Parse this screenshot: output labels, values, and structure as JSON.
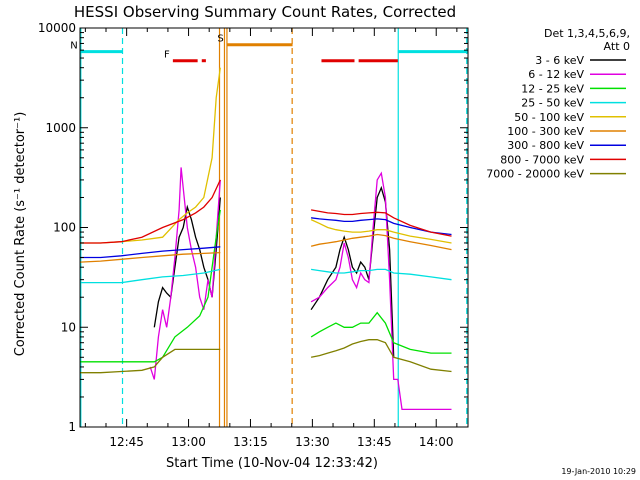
{
  "chart_data": {
    "type": "line",
    "title": "HESSI Observing Summary Count Rates, Corrected",
    "xlabel": "Start Time (10-Nov-04 12:33:42)",
    "ylabel": "Corrected Count Rate (s⁻¹ detector⁻¹)",
    "x_unit": "minutes after 12:33:42",
    "xlim": [
      0,
      94
    ],
    "yscale": "log",
    "ylim": [
      1,
      10000
    ],
    "x_ticks": [
      {
        "label": "12:45",
        "x": 11.3
      },
      {
        "label": "13:00",
        "x": 26.3
      },
      {
        "label": "13:15",
        "x": 41.3
      },
      {
        "label": "13:30",
        "x": 56.3
      },
      {
        "label": "13:45",
        "x": 71.3
      },
      {
        "label": "14:00",
        "x": 86.3
      }
    ],
    "y_ticks": [
      {
        "label": "1",
        "y": 1
      },
      {
        "label": "10",
        "y": 10
      },
      {
        "label": "100",
        "y": 100
      },
      {
        "label": "1000",
        "y": 1000
      },
      {
        "label": "10000",
        "y": 10000
      }
    ],
    "legend_title": "Det 1,3,4,5,6,9,",
    "legend_subtitle": "Att 0",
    "legend_position": "right",
    "series": [
      {
        "name": "3 - 6 keV",
        "color": "#000000",
        "segments": [
          [
            [
              18,
              10
            ],
            [
              19,
              18
            ],
            [
              20,
              25
            ],
            [
              21,
              22
            ],
            [
              22,
              20
            ],
            [
              23,
              40
            ],
            [
              24,
              80
            ],
            [
              25,
              100
            ],
            [
              26,
              160
            ],
            [
              27,
              120
            ],
            [
              28,
              80
            ],
            [
              29,
              60
            ],
            [
              30,
              40
            ],
            [
              31,
              30
            ],
            [
              32,
              20
            ],
            [
              33,
              60
            ],
            [
              34,
              200
            ]
          ],
          [
            [
              56,
              15
            ],
            [
              58,
              20
            ],
            [
              60,
              30
            ],
            [
              62,
              40
            ],
            [
              63,
              60
            ],
            [
              64,
              80
            ],
            [
              65,
              60
            ],
            [
              66,
              40
            ],
            [
              67,
              35
            ],
            [
              68,
              45
            ],
            [
              69,
              40
            ],
            [
              70,
              30
            ],
            [
              71,
              80
            ],
            [
              72,
              200
            ],
            [
              73,
              250
            ],
            [
              74,
              180
            ],
            [
              75,
              60
            ],
            [
              76,
              5
            ]
          ]
        ]
      },
      {
        "name": "6 - 12 keV",
        "color": "#e000e0",
        "segments": [
          [
            [
              17,
              4
            ],
            [
              18,
              3
            ],
            [
              19,
              8
            ],
            [
              20,
              15
            ],
            [
              21,
              10
            ],
            [
              22,
              20
            ],
            [
              23,
              50
            ],
            [
              24,
              150
            ],
            [
              24.5,
              400
            ],
            [
              25,
              250
            ],
            [
              26,
              100
            ],
            [
              27,
              60
            ],
            [
              28,
              40
            ],
            [
              29,
              20
            ],
            [
              30,
              15
            ],
            [
              31,
              30
            ],
            [
              32,
              20
            ],
            [
              33,
              80
            ],
            [
              34,
              300
            ]
          ],
          [
            [
              56,
              18
            ],
            [
              58,
              20
            ],
            [
              60,
              25
            ],
            [
              62,
              30
            ],
            [
              63,
              40
            ],
            [
              64,
              70
            ],
            [
              65,
              50
            ],
            [
              66,
              30
            ],
            [
              67,
              25
            ],
            [
              68,
              35
            ],
            [
              69,
              30
            ],
            [
              70,
              28
            ],
            [
              71,
              100
            ],
            [
              72,
              300
            ],
            [
              73,
              350
            ],
            [
              74,
              200
            ],
            [
              75,
              30
            ],
            [
              76,
              3
            ],
            [
              77,
              3
            ],
            [
              78,
              1.5
            ],
            [
              82,
              1.5
            ],
            [
              90,
              1.5
            ]
          ]
        ]
      },
      {
        "name": "12 - 25 keV",
        "color": "#00e000",
        "segments": [
          [
            [
              0,
              4.5
            ],
            [
              5,
              4.5
            ],
            [
              10,
              4.5
            ],
            [
              15,
              4.5
            ],
            [
              18,
              4.5
            ],
            [
              20,
              5
            ],
            [
              23,
              8
            ],
            [
              26,
              10
            ],
            [
              29,
              13
            ],
            [
              31,
              20
            ],
            [
              33,
              80
            ],
            [
              34,
              150
            ]
          ],
          [
            [
              56,
              8
            ],
            [
              58,
              9
            ],
            [
              60,
              10
            ],
            [
              62,
              11
            ],
            [
              64,
              10
            ],
            [
              66,
              10
            ],
            [
              68,
              11
            ],
            [
              70,
              11
            ],
            [
              72,
              14
            ],
            [
              74,
              11
            ],
            [
              76,
              7
            ],
            [
              80,
              6
            ],
            [
              85,
              5.5
            ],
            [
              90,
              5.5
            ]
          ]
        ]
      },
      {
        "name": "25 - 50 keV",
        "color": "#00e0e0",
        "segments": [
          [
            [
              0,
              28
            ],
            [
              5,
              28
            ],
            [
              10,
              28
            ],
            [
              15,
              30
            ],
            [
              20,
              32
            ],
            [
              25,
              33
            ],
            [
              30,
              35
            ],
            [
              34,
              38
            ]
          ],
          [
            [
              56,
              38
            ],
            [
              58,
              37
            ],
            [
              60,
              36
            ],
            [
              62,
              35
            ],
            [
              64,
              35
            ],
            [
              66,
              36
            ],
            [
              68,
              37
            ],
            [
              70,
              37
            ],
            [
              72,
              38
            ],
            [
              74,
              38
            ],
            [
              76,
              35
            ],
            [
              80,
              34
            ],
            [
              85,
              32
            ],
            [
              90,
              30
            ]
          ]
        ]
      },
      {
        "name": "50 - 100 keV",
        "color": "#e0c000",
        "segments": [
          [
            [
              0,
              70
            ],
            [
              5,
              70
            ],
            [
              10,
              72
            ],
            [
              15,
              75
            ],
            [
              20,
              80
            ],
            [
              24,
              120
            ],
            [
              26,
              140
            ],
            [
              28,
              160
            ],
            [
              30,
              200
            ],
            [
              32,
              500
            ],
            [
              33,
              2000
            ],
            [
              34,
              4000
            ]
          ],
          [
            [
              56,
              120
            ],
            [
              58,
              110
            ],
            [
              60,
              100
            ],
            [
              62,
              95
            ],
            [
              64,
              92
            ],
            [
              66,
              90
            ],
            [
              68,
              90
            ],
            [
              70,
              92
            ],
            [
              72,
              95
            ],
            [
              74,
              95
            ],
            [
              76,
              90
            ],
            [
              80,
              82
            ],
            [
              85,
              76
            ],
            [
              90,
              70
            ]
          ]
        ]
      },
      {
        "name": "100 - 300 keV",
        "color": "#e08000",
        "segments": [
          [
            [
              0,
              45
            ],
            [
              5,
              46
            ],
            [
              10,
              48
            ],
            [
              15,
              50
            ],
            [
              20,
              52
            ],
            [
              25,
              54
            ],
            [
              30,
              55
            ],
            [
              34,
              56
            ]
          ],
          [
            [
              56,
              65
            ],
            [
              58,
              68
            ],
            [
              60,
              70
            ],
            [
              62,
              72
            ],
            [
              64,
              75
            ],
            [
              66,
              78
            ],
            [
              68,
              80
            ],
            [
              70,
              82
            ],
            [
              72,
              85
            ],
            [
              74,
              83
            ],
            [
              76,
              78
            ],
            [
              80,
              72
            ],
            [
              85,
              66
            ],
            [
              90,
              60
            ]
          ]
        ]
      },
      {
        "name": "300 - 800 keV",
        "color": "#0000e0",
        "segments": [
          [
            [
              0,
              50
            ],
            [
              5,
              50
            ],
            [
              10,
              52
            ],
            [
              15,
              55
            ],
            [
              20,
              58
            ],
            [
              25,
              60
            ],
            [
              30,
              62
            ],
            [
              34,
              64
            ]
          ],
          [
            [
              56,
              125
            ],
            [
              58,
              122
            ],
            [
              60,
              120
            ],
            [
              62,
              118
            ],
            [
              64,
              115
            ],
            [
              66,
              115
            ],
            [
              68,
              118
            ],
            [
              70,
              120
            ],
            [
              72,
              122
            ],
            [
              74,
              120
            ],
            [
              76,
              110
            ],
            [
              80,
              100
            ],
            [
              85,
              90
            ],
            [
              90,
              85
            ]
          ]
        ]
      },
      {
        "name": "800 - 7000 keV",
        "color": "#e00000",
        "segments": [
          [
            [
              0,
              70
            ],
            [
              5,
              70
            ],
            [
              10,
              72
            ],
            [
              15,
              80
            ],
            [
              20,
              100
            ],
            [
              25,
              120
            ],
            [
              28,
              140
            ],
            [
              30,
              160
            ],
            [
              32,
              200
            ],
            [
              34,
              300
            ]
          ],
          [
            [
              56,
              150
            ],
            [
              58,
              145
            ],
            [
              60,
              140
            ],
            [
              62,
              138
            ],
            [
              64,
              135
            ],
            [
              66,
              135
            ],
            [
              68,
              138
            ],
            [
              70,
              140
            ],
            [
              72,
              142
            ],
            [
              74,
              140
            ],
            [
              76,
              125
            ],
            [
              80,
              105
            ],
            [
              85,
              90
            ],
            [
              90,
              82
            ]
          ]
        ]
      },
      {
        "name": "7000 - 20000 keV",
        "color": "#808000",
        "segments": [
          [
            [
              0,
              3.5
            ],
            [
              5,
              3.5
            ],
            [
              10,
              3.6
            ],
            [
              15,
              3.7
            ],
            [
              18,
              4
            ],
            [
              20,
              5
            ],
            [
              23,
              6
            ],
            [
              26,
              6
            ],
            [
              30,
              6
            ],
            [
              34,
              6
            ]
          ],
          [
            [
              56,
              5
            ],
            [
              58,
              5.2
            ],
            [
              60,
              5.5
            ],
            [
              62,
              5.8
            ],
            [
              64,
              6.2
            ],
            [
              66,
              6.8
            ],
            [
              68,
              7.2
            ],
            [
              70,
              7.5
            ],
            [
              72,
              7.5
            ],
            [
              74,
              7
            ],
            [
              76,
              5
            ],
            [
              80,
              4.5
            ],
            [
              85,
              3.8
            ],
            [
              90,
              3.6
            ]
          ]
        ]
      }
    ],
    "state_bars": [
      {
        "label": "N",
        "color": "#00e0e0",
        "y": 5800,
        "segments": [
          [
            0,
            10.3
          ],
          [
            77,
            94
          ]
        ]
      },
      {
        "label": "F",
        "color": "#e00000",
        "y": 4700,
        "segments": [
          [
            22.5,
            28.5
          ],
          [
            29.5,
            30.5
          ],
          [
            58.5,
            66.5
          ],
          [
            67.5,
            77
          ]
        ]
      },
      {
        "label": "S",
        "color": "#e08000",
        "y": 6800,
        "segments": [
          [
            35.5,
            51.5
          ]
        ]
      }
    ],
    "vlines": [
      {
        "color": "#00e0e0",
        "dashed": false,
        "x": 0.2
      },
      {
        "color": "#00e0e0",
        "dashed": true,
        "x": 10.3
      },
      {
        "color": "#e08000",
        "dashed": false,
        "x": 33.8
      },
      {
        "color": "#e08000",
        "dashed": false,
        "x": 35
      },
      {
        "color": "#e08000",
        "dashed": false,
        "x": 35.6
      },
      {
        "color": "#e08000",
        "dashed": true,
        "x": 51.4
      },
      {
        "color": "#00e0e0",
        "dashed": false,
        "x": 77.1
      },
      {
        "color": "#00e0e0",
        "dashed": true,
        "x": 93.7
      }
    ],
    "timestamp": "19-Jan-2010 10:29"
  }
}
